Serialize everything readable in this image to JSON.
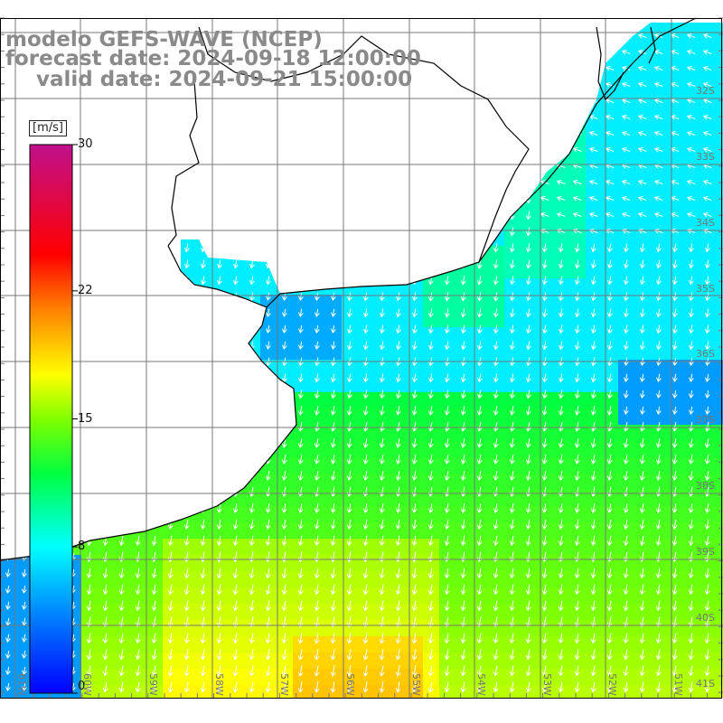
{
  "header": {
    "line1": "modelo GEFS-WAVE (NCEP)",
    "line2": "forecast date: 2024-09-18 12:00:00",
    "line3": "valid date: 2024-09-21 15:00:00"
  },
  "colorbar": {
    "unit": "[m/s]",
    "ticks": [
      {
        "value": 30,
        "label": "30"
      },
      {
        "value": 22,
        "label": "22"
      },
      {
        "value": 15,
        "label": "15"
      },
      {
        "value": 8,
        "label": "8"
      },
      {
        "value": 0,
        "label": "0"
      }
    ],
    "min": 0,
    "max": 30
  },
  "latitude_labels": [
    "32S",
    "33S",
    "34S",
    "35S",
    "36S",
    "37S",
    "38S",
    "39S",
    "40S",
    "41S"
  ],
  "longitude_labels": [
    "61W",
    "60W",
    "59W",
    "58W",
    "57W",
    "56W",
    "55W",
    "54W",
    "53W",
    "52W",
    "51W"
  ],
  "colors": {
    "land": "#ffffff",
    "grid": "#777777",
    "coast": "#000000",
    "arrow": "#ffffff",
    "title": "#8a8a8a"
  },
  "field": {
    "variable": "wind speed",
    "units": "m/s"
  }
}
